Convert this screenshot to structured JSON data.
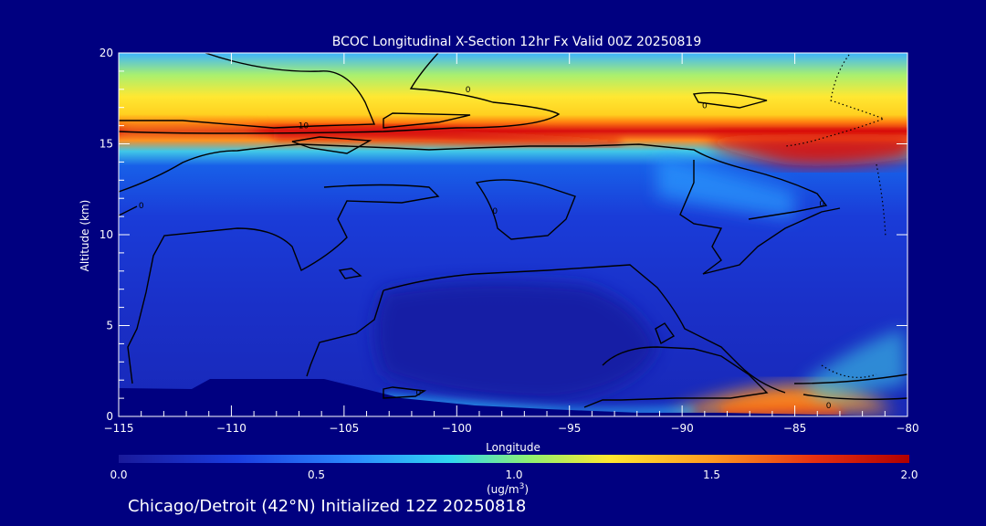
{
  "chart_data": {
    "type": "heatmap",
    "title": "BCOC Longitudinal X-Section 12hr  Fx Valid 00Z 20250819",
    "xlabel": "Longitude",
    "ylabel": "Altitude (km)",
    "xlim": [
      -115,
      -80
    ],
    "ylim": [
      0,
      20
    ],
    "x_ticks": [
      -115,
      -110,
      -105,
      -100,
      -95,
      -90,
      -85,
      -80
    ],
    "x_tick_labels": [
      "−115",
      "−110",
      "−105",
      "−100",
      "−95",
      "−90",
      "−85",
      "−80"
    ],
    "y_ticks": [
      0,
      5,
      10,
      15,
      20
    ],
    "y_tick_labels": [
      "0",
      "5",
      "10",
      "15",
      "20"
    ],
    "colorbar": {
      "min": 0.0,
      "max": 2.0,
      "ticks": [
        0.0,
        0.5,
        1.0,
        1.5,
        2.0
      ],
      "tick_labels": [
        "0.0",
        "0.5",
        "1.0",
        "1.5",
        "2.0"
      ],
      "unit_main": "(ug/m",
      "unit_sup": "3",
      "unit_tail": ")"
    },
    "contour_labels": [
      {
        "lon": -106.8,
        "alt": 16.0,
        "text": "10"
      },
      {
        "lon": -99.5,
        "alt": 18.0,
        "text": "0"
      },
      {
        "lon": -89.0,
        "alt": 17.1,
        "text": "0"
      },
      {
        "lon": -114.0,
        "alt": 11.6,
        "text": "0"
      },
      {
        "lon": -98.3,
        "alt": 11.3,
        "text": "0"
      },
      {
        "lon": -83.8,
        "alt": 11.7,
        "text": "0"
      },
      {
        "lon": -101.7,
        "alt": 1.3,
        "text": "0"
      },
      {
        "lon": -83.5,
        "alt": 0.6,
        "text": "0"
      }
    ],
    "grid": false
  },
  "footer": {
    "caption": "Chicago/Detroit (42°N) Initialized 12Z 20250818"
  },
  "colors": {
    "background": "#000080",
    "low": "#1a2cc8",
    "high": "#d01010",
    "contour": "#000000",
    "text": "#ffffff"
  }
}
